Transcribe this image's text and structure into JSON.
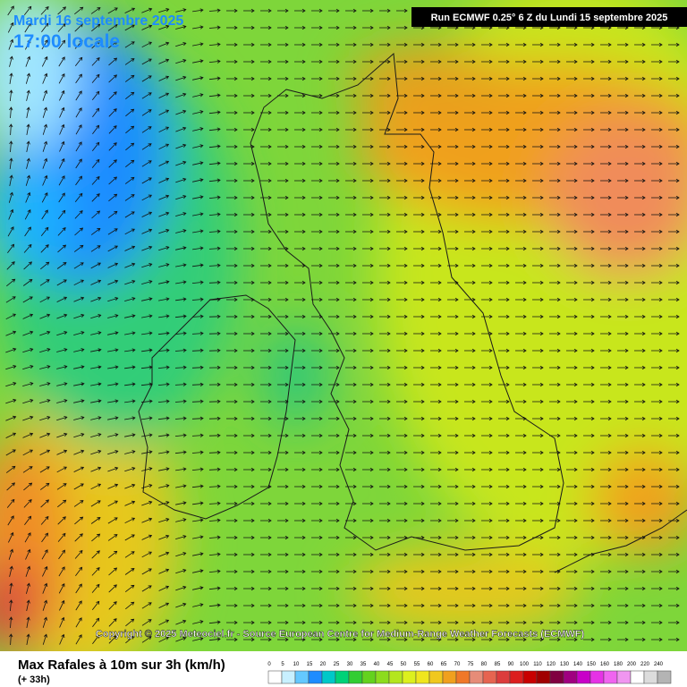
{
  "header": {
    "date": "Mardi 16 septembre 2025",
    "time": "17:00 locale",
    "run": "Run ECMWF 0.25° 6 Z du Lundi 15 septembre 2025"
  },
  "copyright": "Copyright © 2025 Meteociel.fr - Source European Centre for Medium-Range Weather Forecasts (ECMWF)",
  "legend": {
    "title": "Max Rafales à 10m sur 3h (km/h)",
    "lead": "(+ 33h)",
    "scale": [
      {
        "value": 0,
        "color": "#ffffff"
      },
      {
        "value": 5,
        "color": "#c8f0ff"
      },
      {
        "value": 10,
        "color": "#64c8ff"
      },
      {
        "value": 15,
        "color": "#1e8cff"
      },
      {
        "value": 20,
        "color": "#00c8c8"
      },
      {
        "value": 25,
        "color": "#00d278"
      },
      {
        "value": 30,
        "color": "#32cd32"
      },
      {
        "value": 35,
        "color": "#64d21e"
      },
      {
        "value": 40,
        "color": "#8cdc1e"
      },
      {
        "value": 45,
        "color": "#b4e61e"
      },
      {
        "value": 50,
        "color": "#dcf01e"
      },
      {
        "value": 55,
        "color": "#f0e61e"
      },
      {
        "value": 60,
        "color": "#f0c81e"
      },
      {
        "value": 65,
        "color": "#f0a01e"
      },
      {
        "value": 70,
        "color": "#f07828"
      },
      {
        "value": 75,
        "color": "#e68c78"
      },
      {
        "value": 80,
        "color": "#e66450"
      },
      {
        "value": 85,
        "color": "#dc3c3c"
      },
      {
        "value": 90,
        "color": "#dc1e1e"
      },
      {
        "value": 100,
        "color": "#c80000"
      },
      {
        "value": 110,
        "color": "#a00000"
      },
      {
        "value": 120,
        "color": "#800040"
      },
      {
        "value": 130,
        "color": "#a00080"
      },
      {
        "value": 140,
        "color": "#c800c8"
      },
      {
        "value": 150,
        "color": "#e632e6"
      },
      {
        "value": 160,
        "color": "#f064f0"
      },
      {
        "value": 180,
        "color": "#f096f0"
      },
      {
        "value": 200,
        "color": "#ffffff"
      },
      {
        "value": 220,
        "color": "#dcdcdc"
      },
      {
        "value": 240,
        "color": "#b4b4b4"
      }
    ]
  }
}
